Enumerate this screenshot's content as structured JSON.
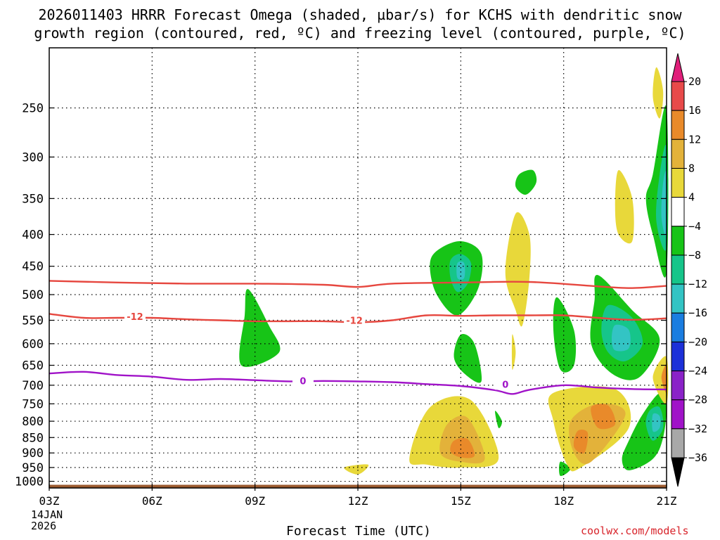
{
  "title_line1": "2026011403 HRRR Forecast Omega (shaded, µbar/s) for KCHS with dendritic snow",
  "title_line2": "growth region (contoured, red, ºC) and freezing level (contoured, purple, ºC)",
  "xlabel": "Forecast Time (UTC)",
  "credit": "coolwx.com/models",
  "date_label": [
    "14JAN",
    "2026"
  ],
  "colors": {
    "green": "#17c417",
    "teal": "#16c58a",
    "cyan": "#33c4c4",
    "blue": "#1a7de0",
    "dark_blue": "#1c30d8",
    "yellow": "#e8d83a",
    "gold": "#e3b23a",
    "orange": "#e98a2a",
    "red": "#e84a4a",
    "magenta": "#e01f7a",
    "dendritic_line": "#e6473f",
    "freezing_line": "#a013c8",
    "ground": "#9b5a2e"
  },
  "chart_data": {
    "type": "heatmap",
    "title": "2026011403 HRRR Forecast Omega (shaded, µbar/s) for KCHS with dendritic snow growth region (contoured, red, ºC) and freezing level (contoured, purple, ºC)",
    "xlabel": "Forecast Time (UTC)",
    "ylabel": "",
    "x_ticks": [
      {
        "hour": 0,
        "label": "03Z"
      },
      {
        "hour": 3,
        "label": "06Z"
      },
      {
        "hour": 6,
        "label": "09Z"
      },
      {
        "hour": 9,
        "label": "12Z"
      },
      {
        "hour": 12,
        "label": "15Z"
      },
      {
        "hour": 15,
        "label": "18Z"
      },
      {
        "hour": 18,
        "label": "21Z"
      }
    ],
    "xlim": [
      0,
      18
    ],
    "y_ticks": [
      250,
      300,
      350,
      400,
      450,
      500,
      550,
      600,
      650,
      700,
      750,
      800,
      850,
      900,
      950,
      1000
    ],
    "ylim_hpa": [
      200,
      1025
    ],
    "y_scale": "log",
    "grid": true,
    "colorbar": {
      "levels": [
        "20",
        "16",
        "12",
        "8",
        "4",
        "−4",
        "−8",
        "−12",
        "−16",
        "−20",
        "−24",
        "−28",
        "−32",
        "−36"
      ],
      "bands": [
        "#e84a4a",
        "#e98a2a",
        "#e3b23a",
        "#e8d83a",
        "#ffffff",
        "#17c417",
        "#16c58a",
        "#33c4c4",
        "#1a7de0",
        "#1c30d8",
        "#8a22c8",
        "#a013c8",
        "#a8a8a8"
      ],
      "top_color": "#e01f7a",
      "bottom_color": "#000000"
    },
    "contours": [
      {
        "label": "-12",
        "color": "#e6473f",
        "label_at": [
          [
            2.5,
            542
          ],
          [
            8.9,
            550
          ]
        ],
        "points": [
          [
            0,
            537
          ],
          [
            1,
            545
          ],
          [
            2,
            545
          ],
          [
            3,
            545
          ],
          [
            4,
            548
          ],
          [
            5,
            550
          ],
          [
            6,
            552
          ],
          [
            7,
            552
          ],
          [
            8,
            552
          ],
          [
            9,
            554
          ],
          [
            10,
            550
          ],
          [
            11,
            540
          ],
          [
            12,
            541
          ],
          [
            13,
            540
          ],
          [
            14,
            540
          ],
          [
            15,
            540
          ],
          [
            16,
            545
          ],
          [
            17,
            549
          ],
          [
            18,
            546
          ]
        ]
      },
      {
        "label": "",
        "color": "#e6473f",
        "label_at": [],
        "points": [
          [
            0,
            475
          ],
          [
            2,
            478
          ],
          [
            4,
            480
          ],
          [
            6,
            480
          ],
          [
            8,
            482
          ],
          [
            9,
            486
          ],
          [
            10,
            480
          ],
          [
            12,
            478
          ],
          [
            14,
            477
          ],
          [
            16,
            485
          ],
          [
            17,
            488
          ],
          [
            18,
            484
          ]
        ]
      },
      {
        "label": "0",
        "color": "#a013c8",
        "label_at": [
          [
            7.4,
            688
          ],
          [
            13.3,
            697
          ]
        ],
        "points": [
          [
            0,
            670
          ],
          [
            1,
            666
          ],
          [
            2,
            674
          ],
          [
            3,
            678
          ],
          [
            4,
            686
          ],
          [
            5,
            684
          ],
          [
            6,
            687
          ],
          [
            7,
            690
          ],
          [
            8,
            689
          ],
          [
            9,
            690
          ],
          [
            10,
            692
          ],
          [
            11,
            697
          ],
          [
            12,
            702
          ],
          [
            13,
            713
          ],
          [
            13.5,
            723
          ],
          [
            14,
            712
          ],
          [
            15,
            700
          ],
          [
            16,
            706
          ],
          [
            17,
            710
          ],
          [
            18,
            711
          ]
        ]
      }
    ],
    "omega_regions": [
      {
        "level": -4,
        "color": "#17c417",
        "pts": [
          [
            5.8,
            490
          ],
          [
            6.4,
            560
          ],
          [
            6.7,
            620
          ],
          [
            5.6,
            650
          ],
          [
            5.7,
            540
          ]
        ]
      },
      {
        "level": -4,
        "color": "#17c417",
        "pts": [
          [
            11.3,
            425
          ],
          [
            12.0,
            410
          ],
          [
            12.6,
            430
          ],
          [
            12.5,
            490
          ],
          [
            11.9,
            540
          ],
          [
            11.3,
            500
          ],
          [
            11.1,
            450
          ]
        ]
      },
      {
        "level": -8,
        "color": "#16c58a",
        "pts": [
          [
            11.7,
            440
          ],
          [
            12.0,
            430
          ],
          [
            12.3,
            445
          ],
          [
            12.2,
            480
          ],
          [
            11.9,
            495
          ],
          [
            11.7,
            470
          ]
        ]
      },
      {
        "level": -12,
        "color": "#33c4c4",
        "pts": [
          [
            11.9,
            445
          ],
          [
            12.1,
            445
          ],
          [
            12.1,
            470
          ],
          [
            11.9,
            470
          ]
        ]
      },
      {
        "level": -4,
        "color": "#17c417",
        "pts": [
          [
            13.7,
            320
          ],
          [
            14.1,
            315
          ],
          [
            14.2,
            330
          ],
          [
            13.9,
            345
          ],
          [
            13.6,
            335
          ]
        ]
      },
      {
        "level": -4,
        "color": "#17c417",
        "pts": [
          [
            12.0,
            580
          ],
          [
            12.4,
            600
          ],
          [
            12.6,
            690
          ],
          [
            12.1,
            670
          ],
          [
            11.8,
            630
          ]
        ]
      },
      {
        "level": -4,
        "color": "#17c417",
        "pts": [
          [
            14.8,
            505
          ],
          [
            15.3,
            570
          ],
          [
            15.3,
            650
          ],
          [
            14.9,
            660
          ],
          [
            14.7,
            570
          ]
        ]
      },
      {
        "level": -4,
        "color": "#17c417",
        "pts": [
          [
            16.0,
            465
          ],
          [
            17.0,
            530
          ],
          [
            17.8,
            590
          ],
          [
            17.2,
            680
          ],
          [
            16.4,
            670
          ],
          [
            15.8,
            600
          ],
          [
            15.9,
            510
          ]
        ]
      },
      {
        "level": -8,
        "color": "#16c58a",
        "pts": [
          [
            16.3,
            520
          ],
          [
            17.0,
            545
          ],
          [
            17.3,
            600
          ],
          [
            16.8,
            640
          ],
          [
            16.3,
            620
          ],
          [
            16.1,
            570
          ]
        ]
      },
      {
        "level": -12,
        "color": "#33c4c4",
        "pts": [
          [
            16.5,
            560
          ],
          [
            16.9,
            570
          ],
          [
            16.9,
            610
          ],
          [
            16.5,
            615
          ],
          [
            16.4,
            590
          ]
        ]
      },
      {
        "level": -4,
        "color": "#17c417",
        "pts": [
          [
            16.9,
            860
          ],
          [
            17.3,
            780
          ],
          [
            17.8,
            720
          ],
          [
            18.0,
            750
          ],
          [
            17.9,
            850
          ],
          [
            17.6,
            920
          ],
          [
            16.9,
            960
          ],
          [
            16.7,
            920
          ]
        ]
      },
      {
        "level": -8,
        "color": "#16c58a",
        "pts": [
          [
            17.5,
            770
          ],
          [
            17.8,
            760
          ],
          [
            17.9,
            820
          ],
          [
            17.6,
            860
          ],
          [
            17.4,
            810
          ]
        ]
      },
      {
        "level": -12,
        "color": "#33c4c4",
        "pts": [
          [
            17.6,
            780
          ],
          [
            17.8,
            785
          ],
          [
            17.8,
            820
          ],
          [
            17.6,
            830
          ]
        ]
      },
      {
        "level": -4,
        "color": "#17c417",
        "pts": [
          [
            17.6,
            320
          ],
          [
            18.0,
            250
          ],
          [
            18.0,
            460
          ],
          [
            17.6,
            400
          ],
          [
            17.4,
            350
          ]
        ]
      },
      {
        "level": -8,
        "color": "#16c58a",
        "pts": [
          [
            17.8,
            320
          ],
          [
            18.0,
            290
          ],
          [
            18.0,
            420
          ],
          [
            17.7,
            380
          ]
        ]
      },
      {
        "level": -12,
        "color": "#33c4c4",
        "pts": [
          [
            17.9,
            330
          ],
          [
            18.0,
            320
          ],
          [
            18.0,
            400
          ],
          [
            17.85,
            375
          ]
        ]
      },
      {
        "level": -4,
        "color": "#17c417",
        "pts": [
          [
            13.0,
            770
          ],
          [
            13.2,
            800
          ],
          [
            13.1,
            820
          ]
        ]
      },
      {
        "level": -4,
        "color": "#17c417",
        "pts": [
          [
            14.9,
            930
          ],
          [
            15.2,
            955
          ],
          [
            14.9,
            980
          ]
        ]
      },
      {
        "level": 4,
        "color": "#e8d83a",
        "pts": [
          [
            13.6,
            370
          ],
          [
            14.0,
            400
          ],
          [
            14.0,
            470
          ],
          [
            13.8,
            560
          ],
          [
            13.6,
            530
          ],
          [
            13.3,
            460
          ]
        ]
      },
      {
        "level": 4,
        "color": "#e8d83a",
        "pts": [
          [
            13.5,
            580
          ],
          [
            13.6,
            620
          ],
          [
            13.5,
            660
          ]
        ]
      },
      {
        "level": 4,
        "color": "#e8d83a",
        "pts": [
          [
            16.6,
            315
          ],
          [
            17.0,
            350
          ],
          [
            17.0,
            410
          ],
          [
            16.6,
            400
          ],
          [
            16.5,
            360
          ]
        ]
      },
      {
        "level": 4,
        "color": "#e8d83a",
        "pts": [
          [
            17.7,
            215
          ],
          [
            17.9,
            235
          ],
          [
            17.8,
            260
          ],
          [
            17.6,
            240
          ]
        ]
      },
      {
        "level": 4,
        "color": "#e8d83a",
        "pts": [
          [
            11.1,
            760
          ],
          [
            12.3,
            740
          ],
          [
            13.1,
            920
          ],
          [
            12.0,
            950
          ],
          [
            11.0,
            940
          ],
          [
            10.5,
            920
          ]
        ]
      },
      {
        "level": 8,
        "color": "#e3b23a",
        "pts": [
          [
            11.6,
            810
          ],
          [
            12.2,
            790
          ],
          [
            12.7,
            920
          ],
          [
            12.0,
            930
          ],
          [
            11.4,
            900
          ]
        ]
      },
      {
        "level": 12,
        "color": "#e98a2a",
        "pts": [
          [
            11.8,
            860
          ],
          [
            12.2,
            855
          ],
          [
            12.4,
            910
          ],
          [
            12.0,
            915
          ],
          [
            11.7,
            895
          ]
        ]
      },
      {
        "level": 4,
        "color": "#e8d83a",
        "pts": [
          [
            14.7,
            720
          ],
          [
            16.5,
            710
          ],
          [
            16.9,
            820
          ],
          [
            15.5,
            950
          ],
          [
            15.1,
            940
          ],
          [
            14.7,
            800
          ]
        ]
      },
      {
        "level": 8,
        "color": "#e3b23a",
        "pts": [
          [
            15.2,
            800
          ],
          [
            16.0,
            750
          ],
          [
            16.8,
            780
          ],
          [
            15.8,
            930
          ],
          [
            15.3,
            900
          ]
        ]
      },
      {
        "level": 12,
        "color": "#e98a2a",
        "pts": [
          [
            15.8,
            760
          ],
          [
            16.3,
            755
          ],
          [
            16.5,
            810
          ],
          [
            16.0,
            820
          ]
        ]
      },
      {
        "level": 12,
        "color": "#e98a2a",
        "pts": [
          [
            15.4,
            830
          ],
          [
            15.7,
            835
          ],
          [
            15.6,
            900
          ],
          [
            15.3,
            880
          ]
        ]
      },
      {
        "level": 4,
        "color": "#e8d83a",
        "pts": [
          [
            18.0,
            630
          ],
          [
            17.6,
            680
          ],
          [
            18.0,
            750
          ]
        ]
      },
      {
        "level": 12,
        "color": "#e98a2a",
        "pts": [
          [
            18.0,
            650
          ],
          [
            17.85,
            680
          ],
          [
            18.0,
            720
          ]
        ]
      },
      {
        "level": 4,
        "color": "#e8d83a",
        "pts": [
          [
            8.6,
            950
          ],
          [
            9.3,
            940
          ],
          [
            9.0,
            975
          ]
        ]
      }
    ],
    "ground_level_hpa": 1013
  }
}
